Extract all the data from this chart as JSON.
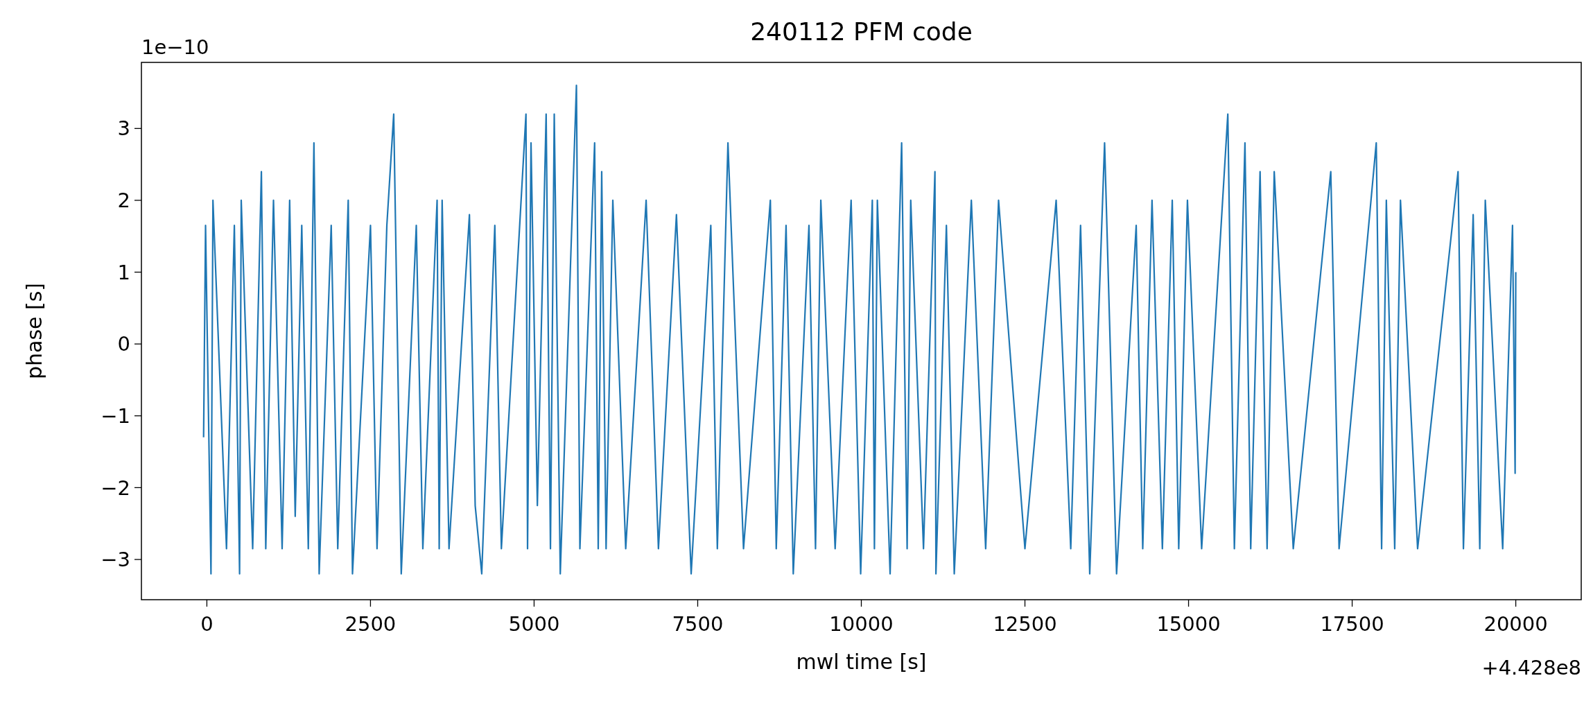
{
  "chart_data": {
    "type": "line",
    "title": "240112 PFM code",
    "xlabel": "mwl time [s]",
    "ylabel": "phase [s]",
    "annotations": [
      "1e−10",
      "+4.428e8"
    ],
    "xlim": [
      -1000,
      21000
    ],
    "xticks": [
      0,
      2500,
      5000,
      7500,
      10000,
      12500,
      15000,
      17500,
      20000
    ],
    "ylim": [
      -3.56,
      3.92
    ],
    "yticks": [
      -3,
      -2,
      -1,
      0,
      1,
      2,
      3
    ],
    "grid": false,
    "series": [
      {
        "color": "#1f77b4",
        "x": [
          -50,
          -20,
          63,
          93,
          300,
          420,
          500,
          525,
          700,
          833,
          900,
          1018,
          1150,
          1265,
          1350,
          1450,
          1550,
          1636,
          1716,
          1900,
          2000,
          2160,
          2225,
          2500,
          2600,
          2750,
          2855,
          2970,
          3200,
          3300,
          3518,
          3550,
          3595,
          3700,
          4012,
          4100,
          4200,
          4400,
          4500,
          4876,
          4900,
          4953,
          5050,
          5184,
          5250,
          5308,
          5400,
          5647,
          5700,
          5925,
          5980,
          6033,
          6100,
          6203,
          6400,
          6712,
          6900,
          7175,
          7400,
          7700,
          7800,
          7962,
          8200,
          8610,
          8700,
          8850,
          8960,
          9200,
          9300,
          9381,
          9600,
          9844,
          9990,
          10168,
          10200,
          10245,
          10440,
          10616,
          10700,
          10755,
          10950,
          11125,
          11140,
          11300,
          11420,
          11681,
          11900,
          12097,
          12500,
          12977,
          13200,
          13350,
          13490,
          13717,
          13900,
          14200,
          14300,
          14442,
          14600,
          14751,
          14850,
          14983,
          15200,
          15600,
          15700,
          15862,
          15950,
          16093,
          16200,
          16309,
          16600,
          17173,
          17300,
          17868,
          17950,
          18022,
          18150,
          18238,
          18500,
          19118,
          19200,
          19349,
          19450,
          19534,
          19800,
          19950,
          19990,
          20000
        ],
        "values": [
          -1.3,
          1.65,
          -3.2,
          2.0,
          -2.85,
          1.65,
          -3.2,
          2.0,
          -2.85,
          2.4,
          -2.85,
          2.0,
          -2.85,
          2.0,
          -2.4,
          1.65,
          -2.85,
          2.8,
          -3.2,
          1.65,
          -2.85,
          2.0,
          -3.2,
          1.65,
          -2.85,
          1.65,
          3.2,
          -3.2,
          1.65,
          -2.85,
          2.0,
          -2.85,
          2.0,
          -2.85,
          1.8,
          -2.25,
          -3.2,
          1.65,
          -2.85,
          3.2,
          -2.85,
          2.8,
          -2.25,
          3.2,
          -2.85,
          3.2,
          -3.2,
          3.6,
          -2.85,
          2.8,
          -2.85,
          2.4,
          -2.85,
          2.0,
          -2.85,
          2.0,
          -2.85,
          1.8,
          -3.2,
          1.65,
          -2.85,
          2.8,
          -2.85,
          2.0,
          -2.85,
          1.65,
          -3.2,
          1.65,
          -2.85,
          2.0,
          -2.85,
          2.0,
          -3.2,
          2.0,
          -2.85,
          2.0,
          -3.2,
          2.8,
          -2.85,
          2.0,
          -2.85,
          2.4,
          -3.2,
          1.65,
          -3.2,
          2.0,
          -2.85,
          2.0,
          -2.85,
          2.0,
          -2.85,
          1.65,
          -3.2,
          2.8,
          -3.2,
          1.65,
          -2.85,
          2.0,
          -2.85,
          2.0,
          -2.85,
          2.0,
          -2.85,
          3.2,
          -2.85,
          2.8,
          -2.85,
          2.4,
          -2.85,
          2.4,
          -2.85,
          2.4,
          -2.85,
          2.8,
          -2.85,
          2.0,
          -2.85,
          2.0,
          -2.85,
          2.4,
          -2.85,
          1.8,
          -2.85,
          2.0,
          -2.85,
          1.65,
          -1.8,
          1.0
        ]
      }
    ]
  }
}
